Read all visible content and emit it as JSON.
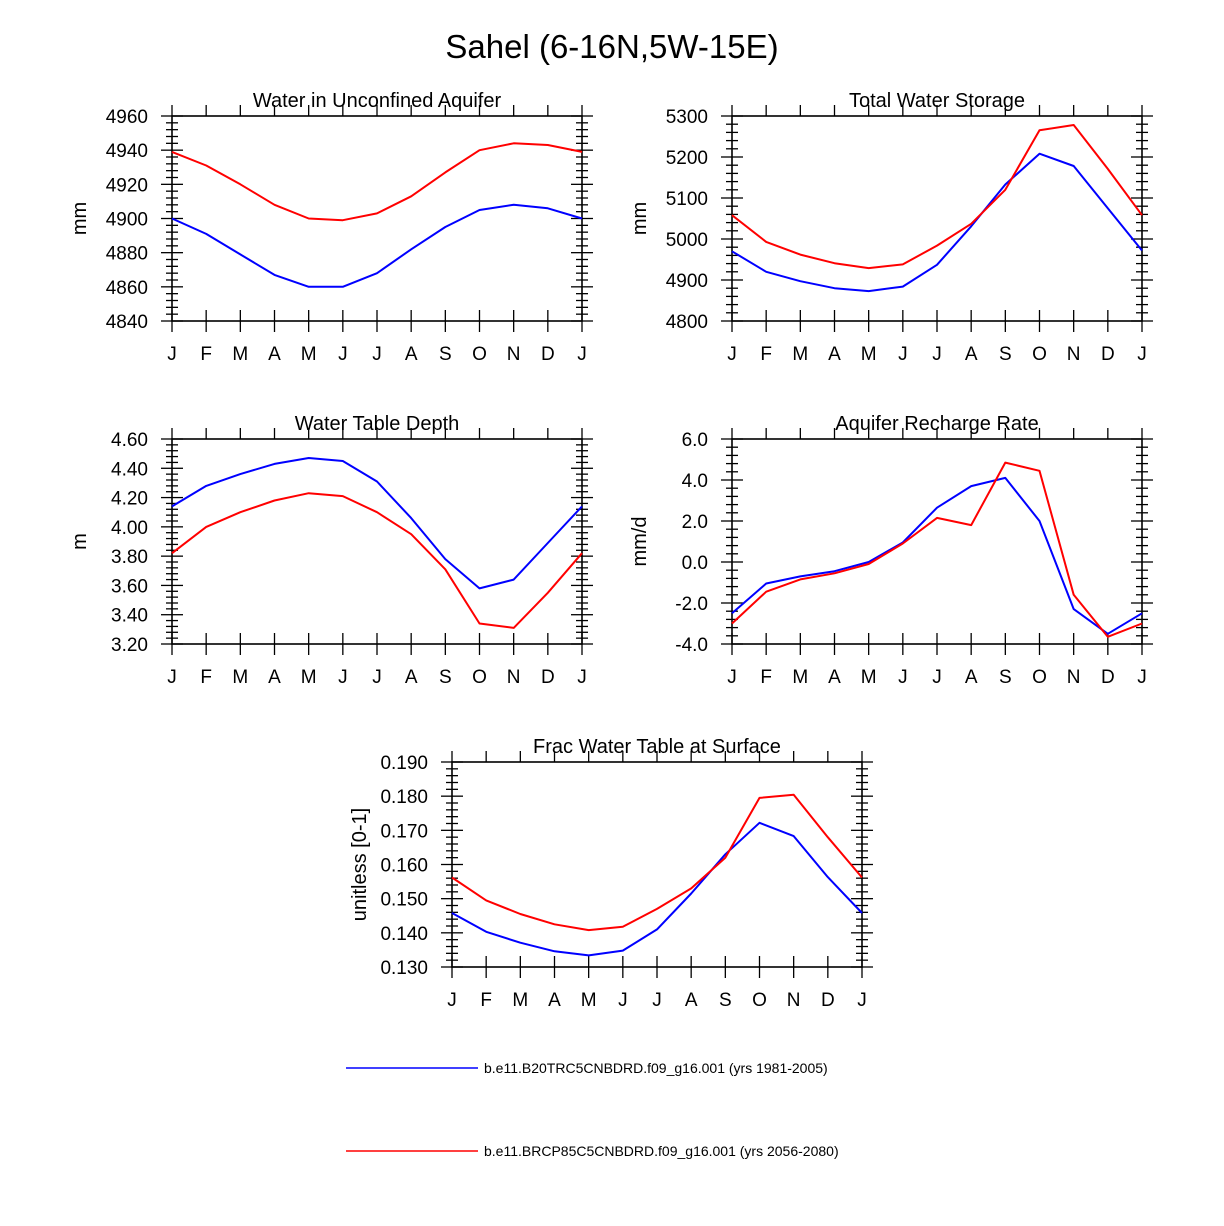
{
  "figure_title": "Sahel (6-16N,5W-15E)",
  "colors": {
    "historical": "#0000ff",
    "future": "#ff0000"
  },
  "legend": [
    {
      "label": "b.e11.B20TRC5CNBDRD.f09_g16.001 (yrs 1981-2005)",
      "color": "#0000ff"
    },
    {
      "label": "b.e11.BRCP85C5CNBDRD.f09_g16.001 (yrs 2056-2080)",
      "color": "#ff0000"
    }
  ],
  "chart_data": [
    {
      "type": "line",
      "title": "Water in Unconfined Aquifer",
      "xlabel": "",
      "ylabel": "mm",
      "categories": [
        "J",
        "F",
        "M",
        "A",
        "M",
        "J",
        "J",
        "A",
        "S",
        "O",
        "N",
        "D",
        "J"
      ],
      "ylim": [
        4840,
        4960
      ],
      "yticks": [
        "4840",
        "4860",
        "4880",
        "4900",
        "4920",
        "4940",
        "4960"
      ],
      "series": [
        {
          "name": "b.e11.B20TRC5CNBDRD.f09_g16.001 (yrs 1981-2005)",
          "color": "#0000ff",
          "values": [
            4900,
            4891,
            4879,
            4867,
            4860,
            4860,
            4868,
            4882,
            4895,
            4905,
            4908,
            4906,
            4900
          ]
        },
        {
          "name": "b.e11.BRCP85C5CNBDRD.f09_g16.001 (yrs 2056-2080)",
          "color": "#ff0000",
          "values": [
            4939,
            4931,
            4920,
            4908,
            4900,
            4899,
            4903,
            4913,
            4927,
            4940,
            4944,
            4943,
            4939
          ]
        }
      ]
    },
    {
      "type": "line",
      "title": "Total Water Storage",
      "xlabel": "",
      "ylabel": "mm",
      "categories": [
        "J",
        "F",
        "M",
        "A",
        "M",
        "J",
        "J",
        "A",
        "S",
        "O",
        "N",
        "D",
        "J"
      ],
      "ylim": [
        4800,
        5300
      ],
      "yticks": [
        "4800",
        "4900",
        "5000",
        "5100",
        "5200",
        "5300"
      ],
      "series": [
        {
          "name": "b.e11.B20TRC5CNBDRD.f09_g16.001 (yrs 1981-2005)",
          "color": "#0000ff",
          "values": [
            4970,
            4920,
            4897,
            4880,
            4873,
            4884,
            4937,
            5031,
            5133,
            5208,
            5178,
            5075,
            4972
          ]
        },
        {
          "name": "b.e11.BRCP85C5CNBDRD.f09_g16.001 (yrs 2056-2080)",
          "color": "#ff0000",
          "values": [
            5058,
            4993,
            4962,
            4941,
            4929,
            4938,
            4984,
            5037,
            5120,
            5265,
            5278,
            5171,
            5058
          ]
        }
      ]
    },
    {
      "type": "line",
      "title": "Water Table Depth",
      "xlabel": "",
      "ylabel": "m",
      "categories": [
        "J",
        "F",
        "M",
        "A",
        "M",
        "J",
        "J",
        "A",
        "S",
        "O",
        "N",
        "D",
        "J"
      ],
      "ylim": [
        3.2,
        4.6
      ],
      "yticks": [
        "3.20",
        "3.40",
        "3.60",
        "3.80",
        "4.00",
        "4.20",
        "4.40",
        "4.60"
      ],
      "series": [
        {
          "name": "b.e11.B20TRC5CNBDRD.f09_g16.001 (yrs 1981-2005)",
          "color": "#0000ff",
          "values": [
            4.14,
            4.28,
            4.36,
            4.43,
            4.47,
            4.45,
            4.31,
            4.06,
            3.78,
            3.58,
            3.64,
            3.89,
            4.14
          ]
        },
        {
          "name": "b.e11.BRCP85C5CNBDRD.f09_g16.001 (yrs 2056-2080)",
          "color": "#ff0000",
          "values": [
            3.82,
            4.0,
            4.1,
            4.18,
            4.23,
            4.21,
            4.1,
            3.95,
            3.71,
            3.34,
            3.31,
            3.55,
            3.82
          ]
        }
      ]
    },
    {
      "type": "line",
      "title": "Aquifer Recharge Rate",
      "xlabel": "",
      "ylabel": "mm/d",
      "categories": [
        "J",
        "F",
        "M",
        "A",
        "M",
        "J",
        "J",
        "A",
        "S",
        "O",
        "N",
        "D",
        "J"
      ],
      "ylim": [
        -4.0,
        6.0
      ],
      "yticks": [
        "-4.0",
        "-2.0",
        "0.0",
        "2.0",
        "4.0",
        "6.0"
      ],
      "series": [
        {
          "name": "b.e11.B20TRC5CNBDRD.f09_g16.001 (yrs 1981-2005)",
          "color": "#0000ff",
          "values": [
            -2.5,
            -1.05,
            -0.7,
            -0.45,
            0.0,
            0.95,
            2.65,
            3.7,
            4.1,
            2.0,
            -2.3,
            -3.5,
            -2.5
          ]
        },
        {
          "name": "b.e11.BRCP85C5CNBDRD.f09_g16.001 (yrs 2056-2080)",
          "color": "#ff0000",
          "values": [
            -3.0,
            -1.45,
            -0.85,
            -0.55,
            -0.1,
            0.9,
            2.15,
            1.8,
            4.85,
            4.45,
            -1.6,
            -3.65,
            -3.0
          ]
        }
      ]
    },
    {
      "type": "line",
      "title": "Frac Water Table at Surface",
      "xlabel": "",
      "ylabel": "unitless [0-1]",
      "categories": [
        "J",
        "F",
        "M",
        "A",
        "M",
        "J",
        "J",
        "A",
        "S",
        "O",
        "N",
        "D",
        "J"
      ],
      "ylim": [
        0.13,
        0.19
      ],
      "yticks": [
        "0.130",
        "0.140",
        "0.150",
        "0.160",
        "0.170",
        "0.180",
        "0.190"
      ],
      "series": [
        {
          "name": "b.e11.B20TRC5CNBDRD.f09_g16.001 (yrs 1981-2005)",
          "color": "#0000ff",
          "values": [
            0.1458,
            0.1403,
            0.1371,
            0.1346,
            0.1334,
            0.1348,
            0.141,
            0.1515,
            0.163,
            0.1722,
            0.1683,
            0.1563,
            0.1458
          ]
        },
        {
          "name": "b.e11.BRCP85C5CNBDRD.f09_g16.001 (yrs 2056-2080)",
          "color": "#ff0000",
          "values": [
            0.1562,
            0.1495,
            0.1455,
            0.1425,
            0.1408,
            0.1418,
            0.147,
            0.153,
            0.162,
            0.1795,
            0.1804,
            0.168,
            0.1562
          ]
        }
      ]
    }
  ]
}
